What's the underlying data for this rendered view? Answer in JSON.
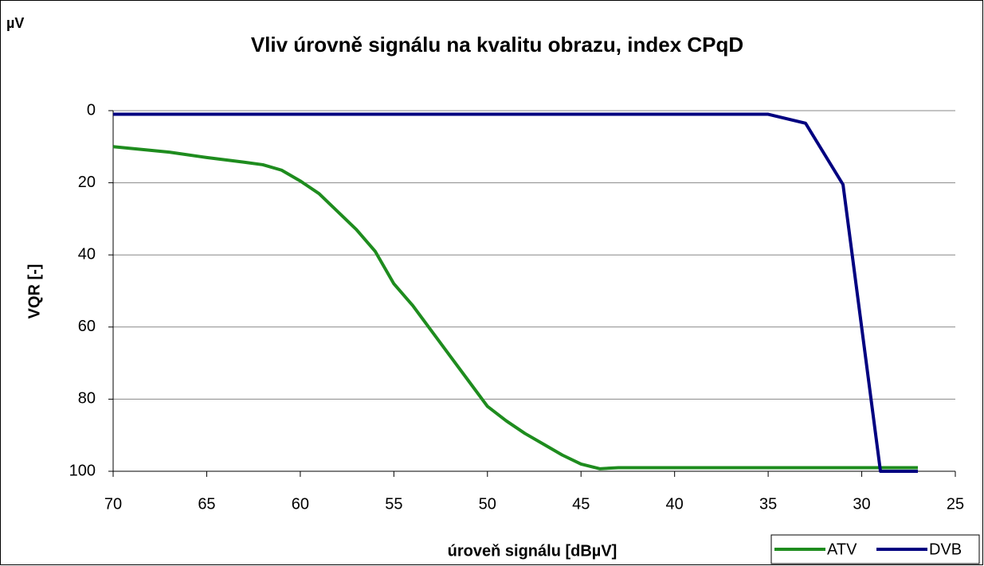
{
  "chart_data": {
    "type": "line",
    "corner_label": "µV",
    "title": "Vliv úrovně signálu na kvalitu obrazu, index CPqD",
    "x_label": "úroveň signálu [dBµV]",
    "y_label": "VQR [-]",
    "xlim": [
      70,
      25
    ],
    "xticks": [
      70,
      65,
      60,
      55,
      50,
      45,
      40,
      35,
      30,
      25
    ],
    "ylim": [
      100,
      0
    ],
    "yticks": [
      0,
      20,
      40,
      60,
      80,
      100
    ],
    "grid": true,
    "legend": "bottom-right",
    "series": [
      {
        "name": "ATV",
        "color": "#1e8c1e",
        "x": [
          70,
          67,
          65,
          63,
          62,
          61,
          60,
          59,
          58,
          57,
          56,
          55,
          54,
          53,
          52,
          51,
          50,
          49,
          48,
          47,
          46,
          45,
          44,
          43,
          42,
          40,
          35,
          30,
          27
        ],
        "values": [
          10,
          11.5,
          13,
          14.3,
          15,
          16.5,
          19.5,
          23,
          28,
          33,
          39,
          48,
          54,
          61,
          68,
          75,
          82,
          86,
          89.5,
          92.5,
          95.5,
          98,
          99.3,
          99,
          99,
          99,
          99,
          99,
          99
        ]
      },
      {
        "name": "DVB",
        "color": "#000080",
        "x": [
          70,
          35,
          33,
          31,
          29,
          27
        ],
        "values": [
          1,
          1,
          3.5,
          20.5,
          100,
          100
        ]
      }
    ]
  }
}
